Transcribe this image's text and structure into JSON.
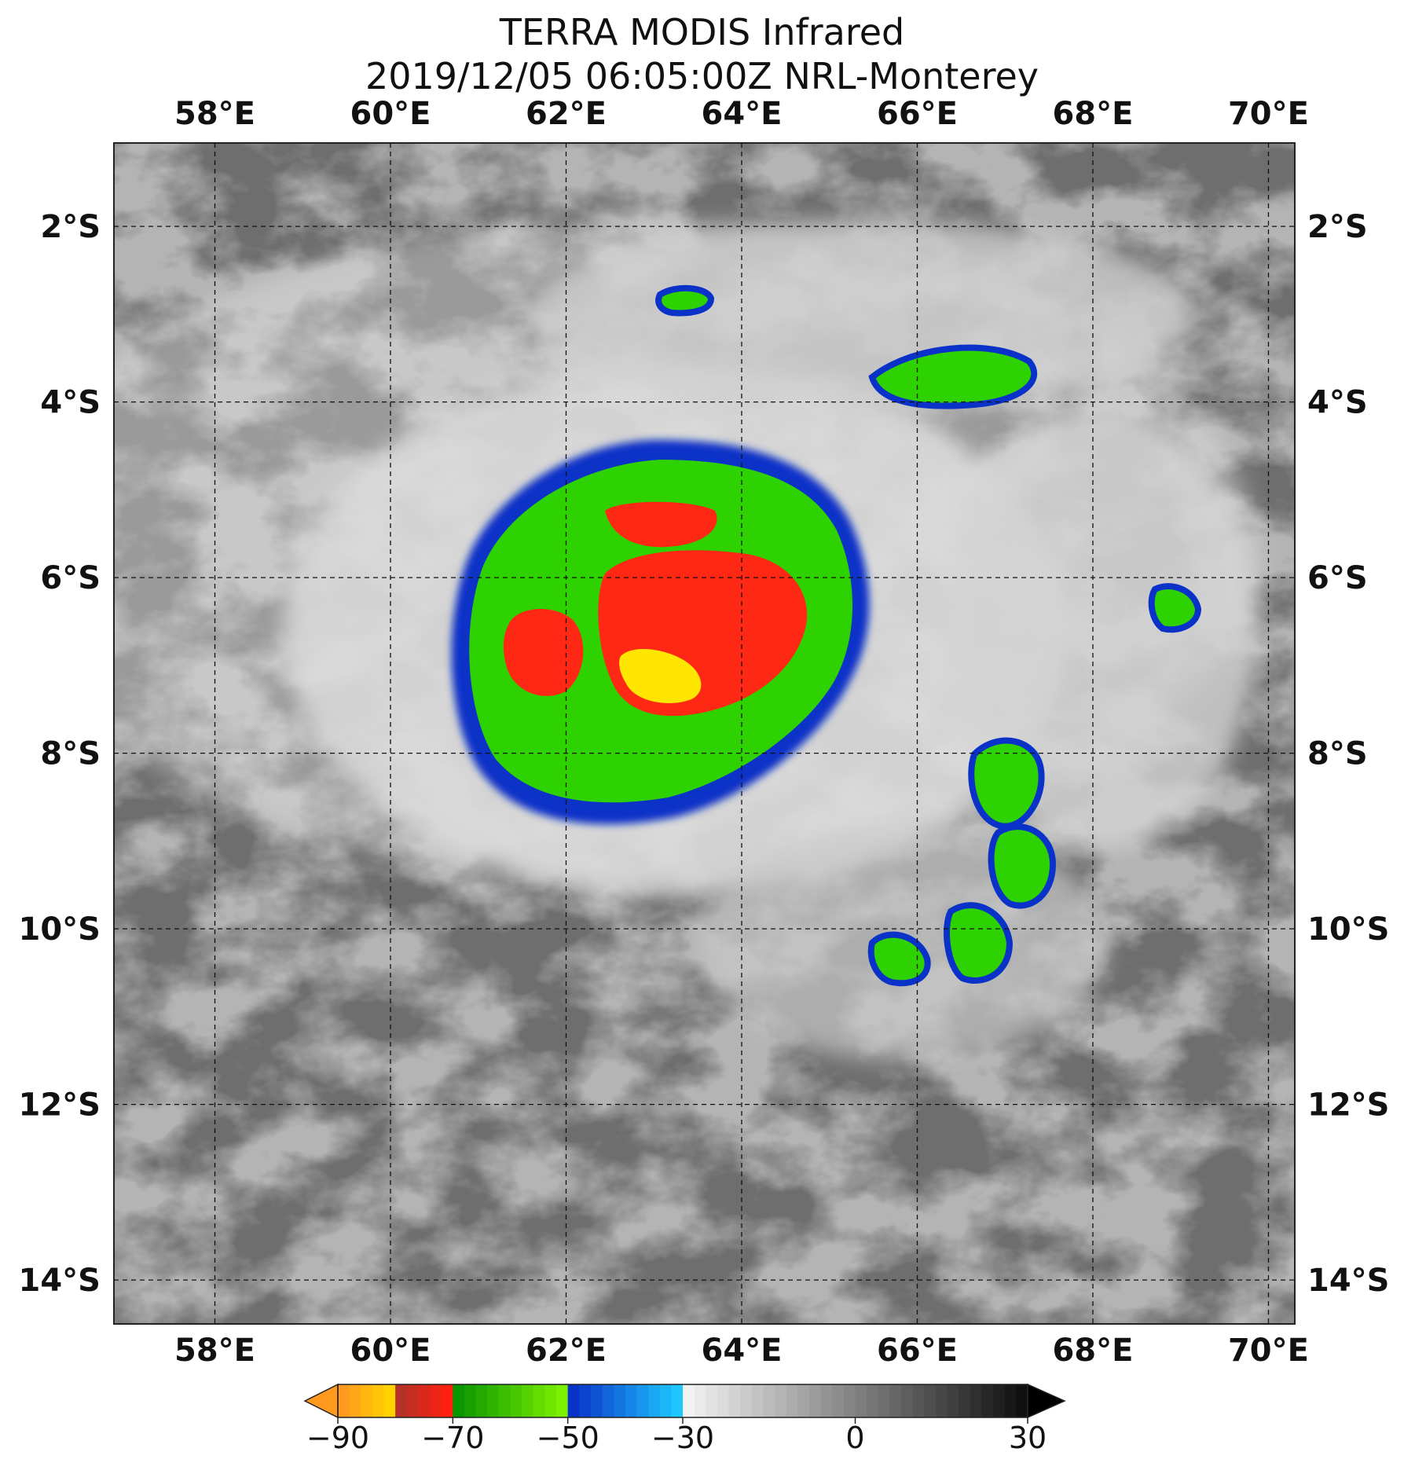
{
  "title": {
    "line1": "TERRA MODIS Infrared",
    "line2": "2019/12/05 06:05:00Z NRL-Monterey"
  },
  "map": {
    "lon_range": [
      56.85,
      70.3
    ],
    "lat_range": [
      -14.5,
      -1.05
    ],
    "lon_ticks": [
      58,
      60,
      62,
      64,
      66,
      68,
      70
    ],
    "lat_ticks": [
      -2,
      -4,
      -6,
      -8,
      -10,
      -12,
      -14
    ],
    "lon_labels": [
      "58°E",
      "60°E",
      "62°E",
      "64°E",
      "66°E",
      "68°E",
      "70°E"
    ],
    "lat_labels": [
      "2°S",
      "4°S",
      "6°S",
      "8°S",
      "10°S",
      "12°S",
      "14°S"
    ],
    "gridlines": "dashed"
  },
  "colorbar": {
    "range": [
      -90,
      30
    ],
    "tick_values": [
      -90,
      -70,
      -50,
      -30,
      0,
      30
    ],
    "tick_labels": [
      "−90",
      "−70",
      "−50",
      "−30",
      "0",
      "30"
    ],
    "extend": "both",
    "colors": {
      "yellow_orange": "#ffd200",
      "red": "#ff2010",
      "green": "#28d200",
      "blue": "#0a32c8",
      "cyan": "#1ec8ff",
      "white": "#f2f2f2",
      "black": "#101010"
    }
  }
}
